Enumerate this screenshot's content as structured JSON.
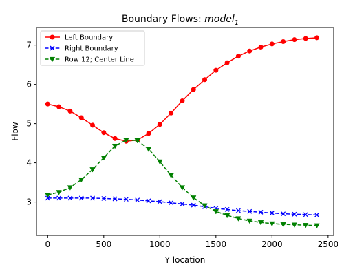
{
  "chart_data": {
    "type": "line",
    "title": "Boundary Flows: ",
    "title_math": "model",
    "title_subscript": "1",
    "xlabel": "Y location",
    "ylabel": "Flow",
    "xlim": [
      -100,
      2550
    ],
    "ylim": [
      2.15,
      7.45
    ],
    "xticks": [
      0,
      500,
      1000,
      1500,
      2000,
      2500
    ],
    "xtick_labels": [
      "0",
      "500",
      "1000",
      "1500",
      "2000",
      "2500"
    ],
    "yticks": [
      3,
      4,
      5,
      6,
      7
    ],
    "ytick_labels": [
      "3",
      "4",
      "5",
      "6",
      "7"
    ],
    "grid": false,
    "legend_position": "top-left",
    "x": [
      0,
      100,
      200,
      300,
      400,
      500,
      600,
      700,
      800,
      900,
      1000,
      1100,
      1200,
      1300,
      1400,
      1500,
      1600,
      1700,
      1800,
      1900,
      2000,
      2100,
      2200,
      2300,
      2400
    ],
    "series": [
      {
        "name": "Left Boundary",
        "color": "#ff0000",
        "marker": "circle",
        "line_style": "solid",
        "values": [
          5.5,
          5.43,
          5.32,
          5.15,
          4.96,
          4.77,
          4.62,
          4.55,
          4.58,
          4.75,
          4.98,
          5.27,
          5.58,
          5.87,
          6.12,
          6.36,
          6.55,
          6.72,
          6.85,
          6.95,
          7.03,
          7.09,
          7.14,
          7.17,
          7.19
        ]
      },
      {
        "name": "Right Boundary",
        "color": "#0000ff",
        "marker": "x",
        "line_style": "dashed",
        "values": [
          3.1,
          3.1,
          3.1,
          3.1,
          3.1,
          3.09,
          3.08,
          3.07,
          3.05,
          3.03,
          3.01,
          2.98,
          2.95,
          2.92,
          2.88,
          2.84,
          2.81,
          2.78,
          2.76,
          2.74,
          2.72,
          2.7,
          2.69,
          2.68,
          2.67
        ]
      },
      {
        "name": "Row 12; Center Line",
        "color": "#008000",
        "marker": "triangle-down",
        "line_style": "dashed",
        "values": [
          3.18,
          3.25,
          3.37,
          3.57,
          3.83,
          4.13,
          4.43,
          4.58,
          4.57,
          4.35,
          4.03,
          3.68,
          3.37,
          3.11,
          2.91,
          2.76,
          2.66,
          2.58,
          2.52,
          2.48,
          2.45,
          2.43,
          2.42,
          2.41,
          2.4
        ]
      }
    ]
  }
}
